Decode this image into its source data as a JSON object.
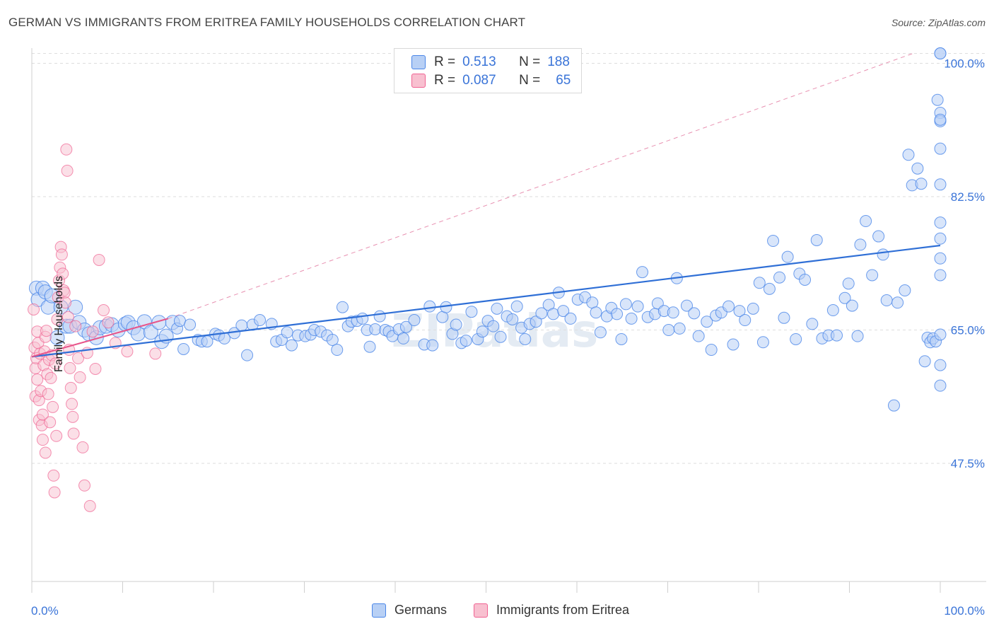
{
  "title": "GERMAN VS IMMIGRANTS FROM ERITREA FAMILY HOUSEHOLDS CORRELATION CHART",
  "source": "Source: ZipAtlas.com",
  "watermark": "ZIPatlas",
  "colors": {
    "germans": "#4a86e8",
    "germans_fill": "#b8d0f5",
    "eritrea": "#f06292",
    "eritrea_fill": "#f8c0d0",
    "axis_text": "#3a74d8"
  },
  "legend_top": {
    "rows": [
      {
        "r_label": "R =",
        "r_value": "0.513",
        "n_label": "N =",
        "n_value": "188"
      },
      {
        "r_label": "R =",
        "r_value": "0.087",
        "n_label": "N =",
        "n_value": "65"
      }
    ]
  },
  "legend_bottom": {
    "items": [
      "Germans",
      "Immigrants from Eritrea"
    ]
  },
  "chart_data": {
    "type": "scatter",
    "title": "GERMAN VS IMMIGRANTS FROM ERITREA FAMILY HOUSEHOLDS CORRELATION CHART",
    "xlabel": "",
    "ylabel": "Family Households",
    "xlim": [
      0,
      100
    ],
    "ylim": [
      32,
      102
    ],
    "x_tick_labels": [
      "0.0%",
      "100.0%"
    ],
    "y_ticks": [
      47.5,
      65.0,
      82.5,
      100.0
    ],
    "y_tick_labels": [
      "47.5%",
      "65.0%",
      "82.5%",
      "100.0%"
    ],
    "grid": true,
    "legend_position": "top-center",
    "series": [
      {
        "name": "Germans",
        "points": [
          [
            0.5,
            70.5
          ],
          [
            0.7,
            69
          ],
          [
            1.2,
            70.5
          ],
          [
            1.5,
            70
          ],
          [
            1.8,
            68
          ],
          [
            2.2,
            69.5
          ],
          [
            2.8,
            64
          ],
          [
            3.2,
            68
          ],
          [
            3.8,
            65.5
          ],
          [
            4.2,
            65.5
          ],
          [
            4.8,
            68
          ],
          [
            5.2,
            66
          ],
          [
            5.8,
            65
          ],
          [
            6.3,
            64.5
          ],
          [
            7.1,
            64
          ],
          [
            7.5,
            65.3
          ],
          [
            8.2,
            65.5
          ],
          [
            8.8,
            65.7
          ],
          [
            9.5,
            65
          ],
          [
            10.3,
            65.8
          ],
          [
            10.6,
            66
          ],
          [
            11.2,
            65.3
          ],
          [
            11.7,
            64.5
          ],
          [
            12.4,
            66.1
          ],
          [
            13.1,
            64.7
          ],
          [
            14,
            66
          ],
          [
            14.3,
            63.5
          ],
          [
            14.8,
            64.2
          ],
          [
            15.5,
            66
          ],
          [
            16,
            65.2
          ],
          [
            16.3,
            66.2
          ],
          [
            16.7,
            62.5
          ],
          [
            17.4,
            65.7
          ],
          [
            18.3,
            63.7
          ],
          [
            18.7,
            63.5
          ],
          [
            19.3,
            63.5
          ],
          [
            20.2,
            64.5
          ],
          [
            20.6,
            64.3
          ],
          [
            21.2,
            63.9
          ],
          [
            22.3,
            64.6
          ],
          [
            23.7,
            61.7
          ],
          [
            23.1,
            65.6
          ],
          [
            24.3,
            65.7
          ],
          [
            25.1,
            66.3
          ],
          [
            26.4,
            65.8
          ],
          [
            26.9,
            63.5
          ],
          [
            27.5,
            63.7
          ],
          [
            28.1,
            64.7
          ],
          [
            28.6,
            63
          ],
          [
            29.3,
            64.3
          ],
          [
            30.1,
            64.2
          ],
          [
            30.7,
            64.4
          ],
          [
            31.1,
            65
          ],
          [
            31.8,
            64.8
          ],
          [
            32.5,
            64.3
          ],
          [
            33.1,
            63.7
          ],
          [
            33.6,
            62.4
          ],
          [
            34.2,
            68
          ],
          [
            34.8,
            65.5
          ],
          [
            35.2,
            66.1
          ],
          [
            35.8,
            66.2
          ],
          [
            36.4,
            66.5
          ],
          [
            36.9,
            65
          ],
          [
            37.2,
            62.8
          ],
          [
            37.8,
            65.1
          ],
          [
            38.3,
            66.8
          ],
          [
            38.9,
            65
          ],
          [
            39.3,
            64.8
          ],
          [
            39.7,
            64.2
          ],
          [
            40.4,
            65.1
          ],
          [
            40.9,
            63.9
          ],
          [
            41.2,
            65.4
          ],
          [
            42.1,
            66.3
          ],
          [
            43.2,
            63.1
          ],
          [
            43.8,
            68.1
          ],
          [
            44.1,
            63
          ],
          [
            45.2,
            66.7
          ],
          [
            45.6,
            68
          ],
          [
            46.3,
            64.5
          ],
          [
            46.7,
            65.7
          ],
          [
            47.3,
            63.3
          ],
          [
            47.8,
            63.6
          ],
          [
            48.4,
            67.4
          ],
          [
            49.1,
            63.8
          ],
          [
            49.6,
            64.8
          ],
          [
            50.2,
            66.2
          ],
          [
            50.8,
            65.5
          ],
          [
            51.2,
            67.8
          ],
          [
            51.6,
            64.1
          ],
          [
            52.3,
            66.8
          ],
          [
            52.9,
            66.4
          ],
          [
            53.4,
            68.1
          ],
          [
            53.9,
            65.3
          ],
          [
            54.3,
            63.8
          ],
          [
            54.8,
            65.8
          ],
          [
            55.5,
            66.1
          ],
          [
            56.1,
            67.2
          ],
          [
            56.9,
            68.3
          ],
          [
            57.4,
            67.1
          ],
          [
            58,
            69.9
          ],
          [
            58.5,
            67.5
          ],
          [
            59.3,
            66.5
          ],
          [
            60.1,
            69
          ],
          [
            60.9,
            69.3
          ],
          [
            61.7,
            68.6
          ],
          [
            62.1,
            67.3
          ],
          [
            62.6,
            64.7
          ],
          [
            63.3,
            66.8
          ],
          [
            63.8,
            67.9
          ],
          [
            64.4,
            67.1
          ],
          [
            64.9,
            63.8
          ],
          [
            65.4,
            68.4
          ],
          [
            66,
            66.5
          ],
          [
            66.7,
            68.1
          ],
          [
            67.2,
            72.6
          ],
          [
            67.8,
            66.7
          ],
          [
            68.6,
            67.1
          ],
          [
            68.9,
            68.5
          ],
          [
            69.6,
            67.5
          ],
          [
            70.1,
            65
          ],
          [
            70.6,
            67.3
          ],
          [
            71,
            71.8
          ],
          [
            71.3,
            65.2
          ],
          [
            72.1,
            68.2
          ],
          [
            72.9,
            67.2
          ],
          [
            73.4,
            64.2
          ],
          [
            74.3,
            66.1
          ],
          [
            74.8,
            62.4
          ],
          [
            75.3,
            66.9
          ],
          [
            75.9,
            67.3
          ],
          [
            76.7,
            68.1
          ],
          [
            77.2,
            63.1
          ],
          [
            77.9,
            67.5
          ],
          [
            78.5,
            66.3
          ],
          [
            79.4,
            67.8
          ],
          [
            80.1,
            71.2
          ],
          [
            80.5,
            63.4
          ],
          [
            81.2,
            70.4
          ],
          [
            81.6,
            76.7
          ],
          [
            82.3,
            71.9
          ],
          [
            82.8,
            66.6
          ],
          [
            83.2,
            74.6
          ],
          [
            84.1,
            63.8
          ],
          [
            84.5,
            72.4
          ],
          [
            85.1,
            71.6
          ],
          [
            85.9,
            65.8
          ],
          [
            86.4,
            76.8
          ],
          [
            87,
            63.9
          ],
          [
            87.7,
            64.3
          ],
          [
            88.2,
            67.6
          ],
          [
            88.6,
            64.3
          ],
          [
            89.5,
            69.2
          ],
          [
            89.9,
            71.1
          ],
          [
            90.3,
            68.2
          ],
          [
            90.9,
            64.2
          ],
          [
            91.2,
            76.2
          ],
          [
            91.8,
            79.3
          ],
          [
            92.5,
            72.2
          ],
          [
            93.2,
            77.3
          ],
          [
            93.7,
            74.9
          ],
          [
            94.1,
            68.9
          ],
          [
            94.9,
            55.1
          ],
          [
            95.3,
            68.6
          ],
          [
            96.1,
            70.2
          ],
          [
            96.5,
            88
          ],
          [
            96.9,
            84
          ],
          [
            97.5,
            86.2
          ],
          [
            97.9,
            84.2
          ],
          [
            98.3,
            60.9
          ],
          [
            98.6,
            64
          ],
          [
            98.9,
            63.4
          ],
          [
            99.2,
            63.9
          ],
          [
            99.5,
            63.5
          ],
          [
            99.7,
            95.2
          ],
          [
            100,
            64.4
          ],
          [
            100,
            93.5
          ],
          [
            100,
            92.4
          ],
          [
            100,
            84.1
          ],
          [
            100,
            57.7
          ],
          [
            100,
            60.4
          ],
          [
            100,
            79.1
          ],
          [
            100,
            77
          ],
          [
            100,
            74.4
          ],
          [
            100,
            72.2
          ],
          [
            100,
            88.8
          ],
          [
            100,
            92.6
          ],
          [
            100,
            101.3
          ],
          [
            100,
            101.3
          ]
        ]
      },
      {
        "name": "Immigrants from Eritrea",
        "points": [
          [
            0.2,
            67.7
          ],
          [
            0.3,
            62.7
          ],
          [
            0.4,
            60
          ],
          [
            0.4,
            56.3
          ],
          [
            0.5,
            61.3
          ],
          [
            0.6,
            64.8
          ],
          [
            0.6,
            58.5
          ],
          [
            0.7,
            63.3
          ],
          [
            0.8,
            53.2
          ],
          [
            0.8,
            55.8
          ],
          [
            0.9,
            61.9
          ],
          [
            1,
            57
          ],
          [
            1.1,
            52.5
          ],
          [
            1.2,
            50.6
          ],
          [
            1.2,
            53.9
          ],
          [
            1.3,
            60.4
          ],
          [
            1.4,
            62.2
          ],
          [
            1.5,
            48.9
          ],
          [
            1.5,
            64.1
          ],
          [
            1.6,
            64.9
          ],
          [
            1.7,
            59.2
          ],
          [
            1.8,
            56.6
          ],
          [
            1.9,
            61.1
          ],
          [
            2,
            52.9
          ],
          [
            2.1,
            58.7
          ],
          [
            2.2,
            61.7
          ],
          [
            2.3,
            54.9
          ],
          [
            2.4,
            45.9
          ],
          [
            2.5,
            43.7
          ],
          [
            2.6,
            60.6
          ],
          [
            2.7,
            51.1
          ],
          [
            2.8,
            66.4
          ],
          [
            2.9,
            69.3
          ],
          [
            3,
            71.5
          ],
          [
            3.1,
            73.2
          ],
          [
            3.2,
            75.9
          ],
          [
            3.3,
            74.9
          ],
          [
            3.4,
            72.4
          ],
          [
            3.5,
            70.2
          ],
          [
            3.6,
            69.9
          ],
          [
            3.7,
            68.6
          ],
          [
            3.8,
            88.7
          ],
          [
            3.9,
            85.9
          ],
          [
            4,
            66.7
          ],
          [
            4.1,
            62.4
          ],
          [
            4.2,
            60
          ],
          [
            4.3,
            57.4
          ],
          [
            4.4,
            55.3
          ],
          [
            4.5,
            53.6
          ],
          [
            4.6,
            51.4
          ],
          [
            4.8,
            65.5
          ],
          [
            5.1,
            61.3
          ],
          [
            5.3,
            58.8
          ],
          [
            5.6,
            49.6
          ],
          [
            5.8,
            44.6
          ],
          [
            6.1,
            62
          ],
          [
            6.4,
            41.9
          ],
          [
            6.7,
            64.8
          ],
          [
            7,
            59.9
          ],
          [
            7.4,
            74.2
          ],
          [
            7.9,
            67.6
          ],
          [
            8.4,
            66
          ],
          [
            9.2,
            63.3
          ],
          [
            10.5,
            62.2
          ],
          [
            13.6,
            61.9
          ]
        ]
      }
    ],
    "trendlines": [
      {
        "series": "Germans",
        "x": [
          0,
          100
        ],
        "y": [
          61.5,
          76.1
        ]
      },
      {
        "series": "Immigrants from Eritrea",
        "x": [
          0,
          15
        ],
        "y": [
          61.5,
          66.5
        ]
      },
      {
        "series": "Immigrants from Eritrea (extrapolated)",
        "x": [
          15,
          97
        ],
        "y": [
          66.5,
          101.3
        ]
      }
    ]
  }
}
